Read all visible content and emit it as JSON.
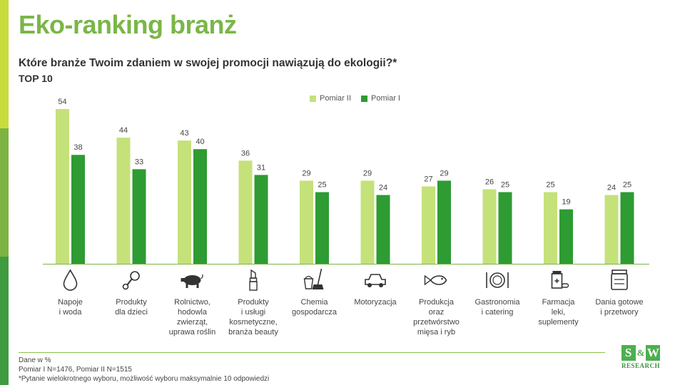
{
  "header": {
    "title": "Eko-ranking branż",
    "question": "Które branże Twoim zdaniem w swojej promocji nawiązują do ekologii?*",
    "subtitle": "TOP 10"
  },
  "colors": {
    "pomiar_ii": "#c5e17a",
    "pomiar_i": "#2e9b33",
    "title": "#7ab648"
  },
  "chart_data": {
    "type": "bar",
    "title": "Które branże Twoim zdaniem w swojej promocji nawiązują do ekologii?*",
    "categories": [
      "Napoje\ni woda",
      "Produkty\ndla dzieci",
      "Rolnictwo,\nhodowla\nzwierząt,\nuprawa roślin",
      "Produkty\ni usługi\nkosmetyczne,\nbranża beauty",
      "Chemia\ngospodarcza",
      "Motoryzacja",
      "Produkcja\noraz\nprzetwórstwo\nmięsa i ryb",
      "Gastronomia\ni catering",
      "Farmacja\nleki,\nsuplementy",
      "Dania gotowe\ni przetwory"
    ],
    "series": [
      {
        "name": "Pomiar II",
        "values": [
          54,
          44,
          43,
          36,
          29,
          29,
          27,
          26,
          25,
          24
        ]
      },
      {
        "name": "Pomiar I",
        "values": [
          38,
          33,
          40,
          31,
          25,
          24,
          29,
          25,
          19,
          25
        ]
      }
    ],
    "ylim": [
      0,
      60
    ],
    "grid": false,
    "legend": "top-center",
    "icons": [
      "water-drop-icon",
      "baby-rattle-icon",
      "pig-icon",
      "lipstick-icon",
      "cleaning-bucket-icon",
      "car-icon",
      "fish-icon",
      "plate-cutlery-icon",
      "medicine-bottle-icon",
      "jar-icon"
    ]
  },
  "footer": {
    "line1": "Dane w %",
    "line2": "Pomiar I N=1476, Pomiar II N=1515",
    "line3": "*Pytanie wielokrotnego wyboru, możliwość wyboru maksymalnie 10 odpowiedzi"
  },
  "logo": {
    "letter_left": "S",
    "amp": "&",
    "letter_right": "W",
    "text": "RESEARCH"
  }
}
